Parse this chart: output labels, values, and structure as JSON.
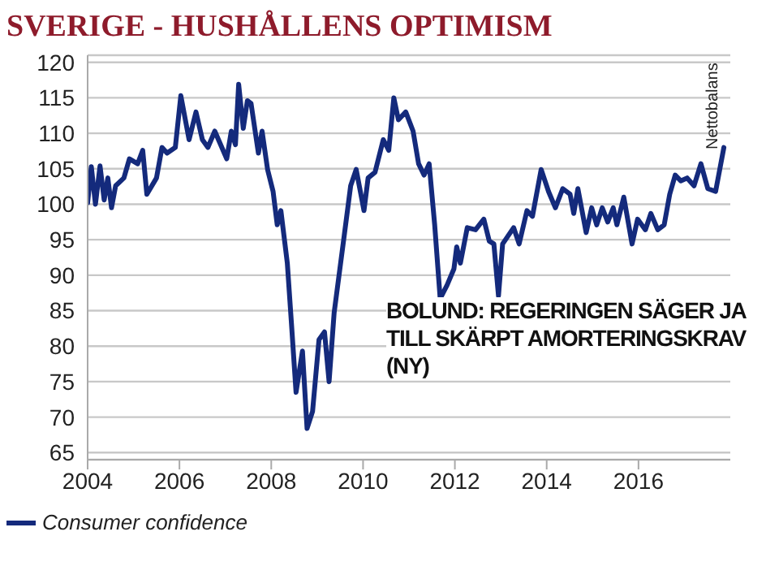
{
  "chart_data": {
    "type": "line",
    "title": "SVERIGE - HUSHÅLLENS OPTIMISM",
    "ylabel": "Nettobalans",
    "annotations": [
      "BOLUND: REGERINGEN SÄGER JA TILL SKÄRPT AMORTERINGSKRAV (NY)"
    ],
    "x": [
      2004.0,
      2004.08,
      2004.17,
      2004.27,
      2004.36,
      2004.44,
      2004.52,
      2004.61,
      2004.79,
      2004.91,
      2005.09,
      2005.2,
      2005.29,
      2005.5,
      2005.62,
      2005.73,
      2005.91,
      2006.03,
      2006.21,
      2006.36,
      2006.5,
      2006.62,
      2006.77,
      2007.03,
      2007.13,
      2007.22,
      2007.29,
      2007.39,
      2007.48,
      2007.56,
      2007.72,
      2007.8,
      2007.92,
      2008.04,
      2008.13,
      2008.21,
      2008.35,
      2008.44,
      2008.54,
      2008.68,
      2008.78,
      2008.9,
      2009.04,
      2009.16,
      2009.26,
      2009.37,
      2009.59,
      2009.73,
      2009.85,
      2010.02,
      2010.11,
      2010.26,
      2010.44,
      2010.56,
      2010.67,
      2010.77,
      2010.93,
      2011.09,
      2011.21,
      2011.33,
      2011.44,
      2011.56,
      2011.68,
      2011.83,
      2011.98,
      2012.04,
      2012.12,
      2012.27,
      2012.45,
      2012.63,
      2012.75,
      2012.85,
      2012.95,
      2013.04,
      2013.28,
      2013.4,
      2013.57,
      2013.69,
      2013.88,
      2014.04,
      2014.19,
      2014.35,
      2014.51,
      2014.59,
      2014.68,
      2014.86,
      2014.98,
      2015.09,
      2015.21,
      2015.33,
      2015.45,
      2015.53,
      2015.68,
      2015.86,
      2015.98,
      2016.15,
      2016.27,
      2016.42,
      2016.56,
      2016.68,
      2016.8,
      2016.92,
      2017.06,
      2017.21,
      2017.36,
      2017.51,
      2017.68,
      2017.86
    ],
    "series": [
      {
        "name": "Consumer confidence",
        "color": "#142a7c",
        "values": [
          100.2,
          105.3,
          100,
          105.4,
          100.6,
          103.7,
          99.5,
          102.6,
          103.7,
          106.4,
          105.7,
          107.6,
          101.4,
          103.7,
          108,
          107.2,
          108,
          115.3,
          109.1,
          113,
          109.1,
          108,
          110.3,
          106.4,
          110.3,
          108.4,
          116.9,
          110.7,
          114.6,
          114.2,
          107.2,
          110.3,
          104.9,
          101.8,
          97.1,
          99.1,
          91.7,
          83.2,
          73.5,
          79.3,
          68.4,
          70.8,
          80.9,
          82,
          75,
          84.7,
          95.6,
          102.6,
          104.9,
          99.1,
          103.7,
          104.5,
          109.1,
          107.6,
          115,
          111.9,
          113,
          110.3,
          105.7,
          104.1,
          105.7,
          97.1,
          86.7,
          88.6,
          90.9,
          94,
          91.7,
          96.7,
          96.4,
          97.9,
          94.8,
          94.4,
          87.1,
          94.4,
          96.7,
          94.4,
          99.1,
          98.3,
          104.9,
          101.8,
          99.5,
          102.2,
          101.4,
          98.7,
          102.2,
          96,
          99.5,
          97.1,
          99.5,
          97.5,
          99.5,
          97.1,
          101,
          94.4,
          97.9,
          96.4,
          98.7,
          96.4,
          97.1,
          101.4,
          104.1,
          103.3,
          103.7,
          102.6,
          105.7,
          102.2,
          101.8,
          108
        ]
      }
    ],
    "xlim": [
      2004,
      2018
    ],
    "xticks": [
      2004,
      2006,
      2008,
      2010,
      2012,
      2014,
      2016
    ],
    "ylim": [
      64,
      121
    ],
    "yticks": [
      65,
      70,
      75,
      80,
      85,
      90,
      95,
      100,
      105,
      110,
      115,
      120
    ],
    "grid": "y",
    "legend": "bottom left",
    "marker": "none",
    "line_style": "solid"
  }
}
